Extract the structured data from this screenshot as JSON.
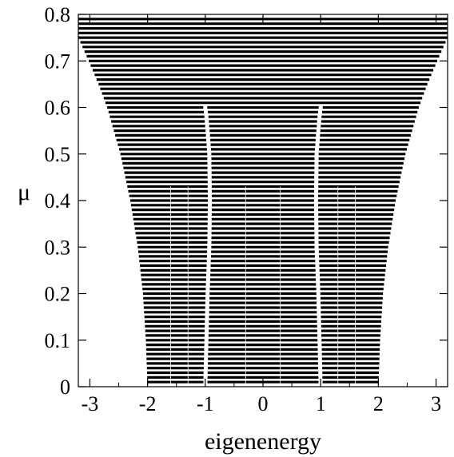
{
  "chart_data": {
    "type": "scatter",
    "title": "",
    "xlabel": "eigenenergy",
    "ylabel": "μ",
    "xlim": [
      -3.2,
      3.2
    ],
    "ylim": [
      0,
      0.8
    ],
    "xticks": [
      "-3",
      "-2",
      "-1",
      "0",
      "1",
      "2",
      "3"
    ],
    "yticks": [
      "0",
      "0.1",
      "0.2",
      "0.3",
      "0.4",
      "0.5",
      "0.6",
      "0.7",
      "0.8"
    ],
    "grid": false,
    "mu_step": 0.01,
    "series": [
      {
        "values_description": "",
        "outer_band_edge": [
          [
            0.0,
            2.0
          ],
          [
            0.1,
            2.03
          ],
          [
            0.2,
            2.08
          ],
          [
            0.3,
            2.17
          ],
          [
            0.4,
            2.3
          ],
          [
            0.5,
            2.47
          ],
          [
            0.6,
            2.7
          ],
          [
            0.65,
            2.85
          ],
          [
            0.7,
            3.02
          ],
          [
            0.75,
            3.2
          ],
          [
            0.8,
            3.2
          ]
        ],
        "inner_gap_edge": [
          [
            0.0,
            1.0
          ],
          [
            0.1,
            0.98
          ],
          [
            0.2,
            0.96
          ],
          [
            0.3,
            0.93
          ],
          [
            0.4,
            0.92
          ],
          [
            0.5,
            0.93
          ],
          [
            0.55,
            0.96
          ],
          [
            0.58,
            0.98
          ],
          [
            0.6,
            1.0
          ]
        ],
        "dense_lines": [
          -1.6,
          -1.3,
          -0.3,
          0.3,
          1.3,
          1.6
        ]
      }
    ]
  }
}
